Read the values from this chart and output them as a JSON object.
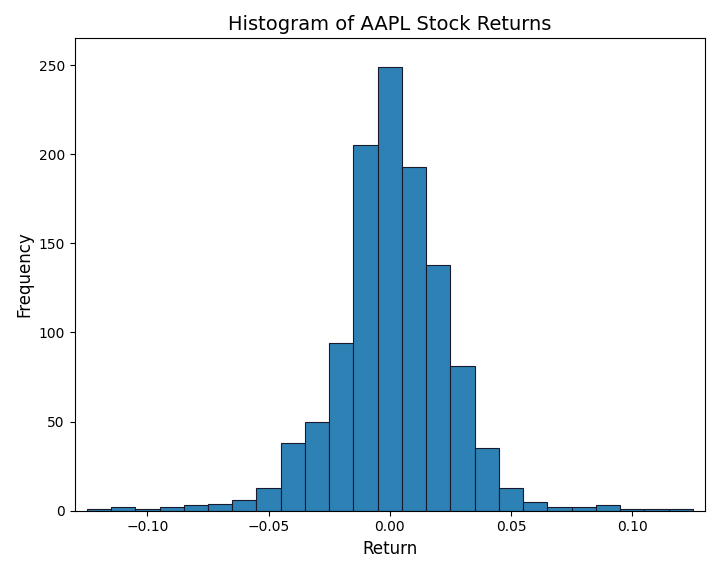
{
  "title": "Histogram of AAPL Stock Returns",
  "xlabel": "Return",
  "ylabel": "Frequency",
  "bar_color": "#2e81b5",
  "edge_color": "#1a1a2e",
  "bin_edges": [
    -0.125,
    -0.115,
    -0.105,
    -0.095,
    -0.085,
    -0.075,
    -0.065,
    -0.055,
    -0.045,
    -0.035,
    -0.025,
    -0.015,
    -0.005,
    0.005,
    0.015,
    0.025,
    0.035,
    0.045,
    0.055,
    0.065,
    0.075,
    0.085,
    0.095,
    0.105,
    0.115,
    0.125
  ],
  "bin_heights": [
    1,
    2,
    1,
    2,
    3,
    4,
    6,
    13,
    38,
    50,
    94,
    205,
    249,
    193,
    138,
    81,
    35,
    13,
    5,
    2,
    2,
    3,
    1,
    1,
    1
  ],
  "ylim": [
    0,
    265
  ],
  "xlim": [
    -0.13,
    0.13
  ],
  "title_fontsize": 14,
  "label_fontsize": 12
}
